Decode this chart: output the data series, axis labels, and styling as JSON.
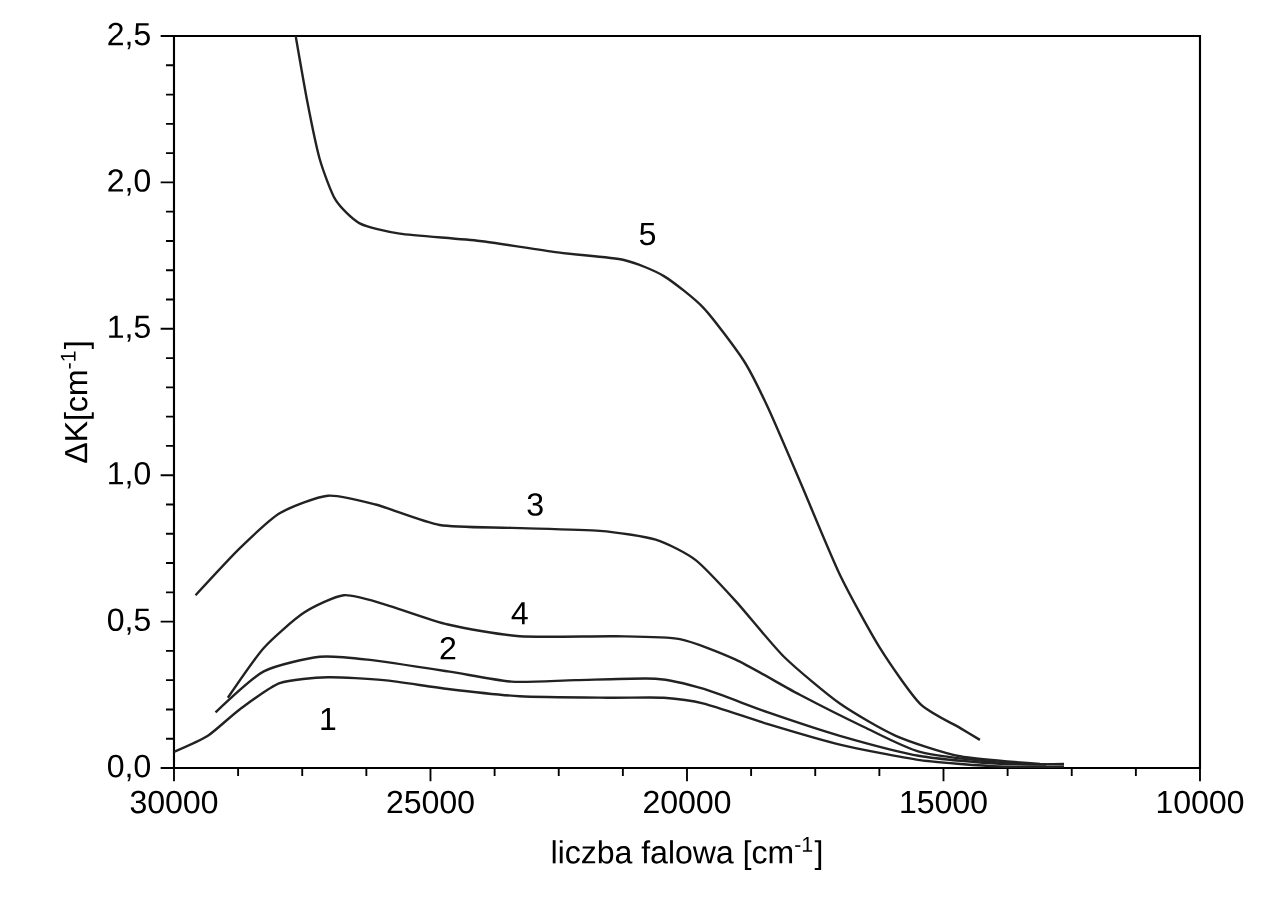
{
  "chart_data": {
    "type": "line",
    "xlabel": "liczba falowa [cm$^{-1}$]",
    "ylabel": "ΔK[cm$^{-1}$]",
    "xlim": [
      30000,
      10000
    ],
    "xticks": [
      30000,
      25000,
      20000,
      15000,
      10000
    ],
    "ylim": [
      0,
      2.5
    ],
    "yticks": [
      {
        "value": 0,
        "label": "0,0"
      },
      {
        "value": 0.5,
        "label": "0,5"
      },
      {
        "value": 1.0,
        "label": "1,0"
      },
      {
        "value": 1.5,
        "label": "1,5"
      },
      {
        "value": 2.0,
        "label": "2,0"
      },
      {
        "value": 2.5,
        "label": "2,5"
      }
    ],
    "grid": false,
    "legend": false,
    "marker": "none",
    "line_style": "solid",
    "series": [
      {
        "name": "1",
        "color": "#222222",
        "x": [
          30000,
          29340,
          28720,
          27940,
          27000,
          25910,
          24660,
          23260,
          21540,
          20450,
          19670,
          18420,
          17020,
          15460,
          13900,
          12650
        ],
        "values": [
          0.055,
          0.11,
          0.2,
          0.29,
          0.31,
          0.3,
          0.27,
          0.245,
          0.24,
          0.24,
          0.22,
          0.15,
          0.08,
          0.027,
          0.005,
          0.005
        ]
      },
      {
        "name": "2",
        "color": "#222222",
        "x": [
          29190,
          28250,
          27160,
          26220,
          24660,
          23420,
          22170,
          20610,
          19670,
          18420,
          17020,
          15460,
          13900,
          12650
        ],
        "values": [
          0.19,
          0.33,
          0.38,
          0.37,
          0.33,
          0.295,
          0.3,
          0.305,
          0.27,
          0.19,
          0.11,
          0.041,
          0.014,
          0.014
        ]
      },
      {
        "name": "3",
        "color": "#222222",
        "x": [
          29580,
          28720,
          27940,
          27000,
          26070,
          24820,
          23420,
          21700,
          20610,
          19830,
          19050,
          18110,
          17020,
          15930,
          14680,
          13120
        ],
        "values": [
          0.59,
          0.75,
          0.87,
          0.93,
          0.9,
          0.83,
          0.82,
          0.81,
          0.78,
          0.71,
          0.57,
          0.38,
          0.22,
          0.11,
          0.04,
          0.014
        ]
      },
      {
        "name": "4",
        "color": "#222222",
        "x": [
          28950,
          28250,
          27470,
          26690,
          25910,
          24660,
          23260,
          21390,
          20140,
          19050,
          17800,
          16550,
          15460,
          13900,
          13000
        ],
        "values": [
          0.24,
          0.41,
          0.53,
          0.59,
          0.56,
          0.49,
          0.45,
          0.45,
          0.44,
          0.37,
          0.25,
          0.14,
          0.055,
          0.018,
          0.012
        ]
      },
      {
        "name": "5",
        "color": "#222222",
        "x": [
          27628,
          27395,
          27160,
          26850,
          26380,
          25600,
          24040,
          22480,
          21230,
          20450,
          19670,
          18890,
          18420,
          17800,
          17020,
          16240,
          15460,
          14680,
          14290
        ],
        "values": [
          2.5,
          2.27,
          2.08,
          1.94,
          1.86,
          1.825,
          1.8,
          1.76,
          1.735,
          1.68,
          1.57,
          1.39,
          1.23,
          0.98,
          0.66,
          0.41,
          0.22,
          0.137,
          0.096
        ]
      }
    ]
  }
}
